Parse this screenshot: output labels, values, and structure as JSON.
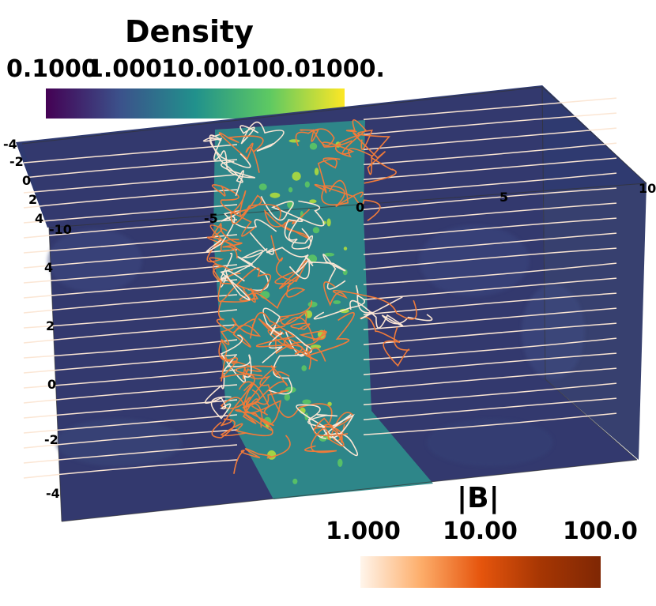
{
  "density_colorbar": {
    "title": "Density",
    "ticks": [
      "0.1000",
      "1.000",
      "10.00",
      "100.0",
      "1000."
    ],
    "colors": [
      "#440154",
      "#3b528b",
      "#21918c",
      "#5ec962",
      "#fde725"
    ]
  },
  "bfield_colorbar": {
    "title": "|B|",
    "ticks": [
      "1.000",
      "10.00",
      "100.0"
    ],
    "colors": [
      "#fff5eb",
      "#fdae6b",
      "#e6550d",
      "#a63603",
      "#7f2704"
    ]
  },
  "axes": {
    "x_ticks": [
      "-10",
      "-5",
      "0",
      "5",
      "10"
    ],
    "y_ticks": [
      "4",
      "2",
      "0",
      "-2",
      "-4"
    ],
    "z_ticks": [
      "-4",
      "-2",
      "0",
      "2",
      "4"
    ]
  },
  "colors": {
    "background_low_density": "#33396e",
    "slab_density": "#2e8a8a",
    "clump_high_density": "#b6e03a",
    "field_line_weak": "#fbe6d4",
    "field_line_strong": "#f07b3a"
  }
}
